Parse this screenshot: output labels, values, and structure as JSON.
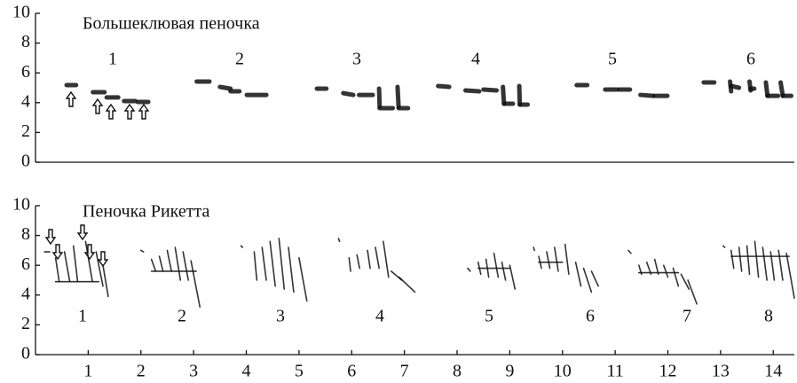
{
  "chart_data": [
    {
      "type": "spectrogram",
      "title": "Большеклювая пеночка",
      "ylim": [
        0,
        10
      ],
      "yticks": [
        0,
        2,
        4,
        6,
        8,
        10
      ],
      "xlim": [
        0,
        14.4
      ],
      "song_labels": [
        "1",
        "2",
        "3",
        "4",
        "5",
        "6"
      ],
      "note_width": 5,
      "notes": [
        [
          0.59,
          5.18,
          0.77,
          5.18
        ],
        [
          1.09,
          4.7,
          1.31,
          4.7
        ],
        [
          1.35,
          4.35,
          1.57,
          4.35
        ],
        [
          1.68,
          4.11,
          1.89,
          4.11
        ],
        [
          1.94,
          4.05,
          2.14,
          4.05
        ],
        [
          3.06,
          5.42,
          3.3,
          5.42
        ],
        [
          3.5,
          5.06,
          3.7,
          4.94
        ],
        [
          3.7,
          4.76,
          3.87,
          4.76
        ],
        [
          4.01,
          4.52,
          4.38,
          4.52
        ],
        [
          5.34,
          4.94,
          5.52,
          4.94
        ],
        [
          5.84,
          4.64,
          6.03,
          4.52
        ],
        [
          6.14,
          4.52,
          6.4,
          4.52
        ],
        [
          6.52,
          4.94,
          6.53,
          3.75
        ],
        [
          6.53,
          3.63,
          6.78,
          3.63
        ],
        [
          6.87,
          5.06,
          6.89,
          3.75
        ],
        [
          6.89,
          3.63,
          7.07,
          3.63
        ],
        [
          7.64,
          5.12,
          7.85,
          5.06
        ],
        [
          8.16,
          4.82,
          8.42,
          4.76
        ],
        [
          8.5,
          4.88,
          8.75,
          4.82
        ],
        [
          8.87,
          5.06,
          8.89,
          3.93
        ],
        [
          8.89,
          3.93,
          9.06,
          3.93
        ],
        [
          9.18,
          5.12,
          9.19,
          3.87
        ],
        [
          9.19,
          3.87,
          9.34,
          3.87
        ],
        [
          10.27,
          5.18,
          10.47,
          5.18
        ],
        [
          10.81,
          4.88,
          11.04,
          4.88
        ],
        [
          11.08,
          4.88,
          11.28,
          4.88
        ],
        [
          11.48,
          4.52,
          11.72,
          4.46
        ],
        [
          11.75,
          4.46,
          11.99,
          4.46
        ],
        [
          12.68,
          5.36,
          12.88,
          5.36
        ],
        [
          13.18,
          5.42,
          13.2,
          4.76
        ],
        [
          13.2,
          5.12,
          13.35,
          5.0
        ],
        [
          13.55,
          5.42,
          13.57,
          4.82
        ],
        [
          13.57,
          4.94,
          13.64,
          4.94
        ],
        [
          13.86,
          5.36,
          13.89,
          4.46
        ],
        [
          13.89,
          4.46,
          14.09,
          4.46
        ],
        [
          14.14,
          5.36,
          14.18,
          4.46
        ],
        [
          14.18,
          4.46,
          14.34,
          4.46
        ]
      ]
    },
    {
      "type": "spectrogram",
      "title": "Пеночка Рикетта",
      "ylim": [
        0,
        10
      ],
      "yticks": [
        0,
        2,
        4,
        6,
        8,
        10
      ],
      "xlim": [
        0,
        14.4
      ],
      "xticks": [
        1,
        2,
        3,
        4,
        5,
        6,
        7,
        8,
        9,
        10,
        11,
        12,
        13,
        14
      ],
      "song_labels": [
        "1",
        "2",
        "3",
        "4",
        "5",
        "6",
        "7",
        "8"
      ],
      "note_width": 1.6,
      "notes": [
        [
          0.17,
          6.9,
          0.27,
          6.9
        ],
        [
          0.38,
          6.5,
          0.45,
          4.9
        ],
        [
          0.55,
          6.9,
          0.65,
          4.9
        ],
        [
          0.72,
          7.3,
          0.8,
          4.9
        ],
        [
          0.95,
          7.6,
          1.08,
          4.9
        ],
        [
          1.15,
          6.9,
          1.28,
          4.6
        ],
        [
          1.28,
          6.0,
          1.38,
          3.9
        ],
        [
          0.38,
          4.9,
          1.2,
          4.9
        ],
        [
          2.0,
          7.0,
          2.05,
          6.9
        ],
        [
          2.2,
          6.4,
          2.28,
          5.6
        ],
        [
          2.35,
          6.6,
          2.42,
          5.6
        ],
        [
          2.5,
          7.0,
          2.58,
          5.6
        ],
        [
          2.65,
          7.2,
          2.75,
          5.0
        ],
        [
          2.8,
          6.9,
          2.9,
          5.0
        ],
        [
          2.95,
          6.3,
          3.12,
          3.2
        ],
        [
          2.2,
          5.6,
          3.05,
          5.6
        ],
        [
          3.9,
          7.3,
          3.93,
          7.2
        ],
        [
          4.15,
          6.9,
          4.2,
          5.0
        ],
        [
          4.3,
          7.2,
          4.38,
          5.0
        ],
        [
          4.45,
          7.6,
          4.55,
          4.6
        ],
        [
          4.62,
          7.8,
          4.72,
          4.4
        ],
        [
          4.8,
          7.2,
          4.9,
          4.2
        ],
        [
          5.0,
          6.5,
          5.15,
          3.6
        ],
        [
          5.75,
          7.8,
          5.77,
          7.6
        ],
        [
          5.95,
          6.5,
          5.98,
          5.6
        ],
        [
          6.1,
          6.7,
          6.15,
          5.8
        ],
        [
          6.3,
          7.0,
          6.35,
          5.8
        ],
        [
          6.45,
          7.2,
          6.52,
          5.8
        ],
        [
          6.6,
          7.6,
          6.7,
          5.2
        ],
        [
          6.75,
          5.6,
          6.95,
          5.0
        ],
        [
          6.9,
          5.2,
          7.2,
          4.2
        ],
        [
          8.2,
          5.8,
          8.25,
          5.6
        ],
        [
          8.4,
          6.2,
          8.45,
          5.4
        ],
        [
          8.55,
          6.4,
          8.6,
          5.2
        ],
        [
          8.7,
          6.8,
          8.78,
          5.2
        ],
        [
          8.85,
          6.2,
          8.92,
          5.0
        ],
        [
          9.0,
          6.0,
          9.1,
          4.4
        ],
        [
          8.4,
          5.8,
          9.0,
          5.8
        ],
        [
          9.45,
          7.2,
          9.47,
          7.0
        ],
        [
          9.55,
          6.6,
          9.6,
          5.8
        ],
        [
          9.7,
          6.9,
          9.76,
          5.8
        ],
        [
          9.85,
          7.2,
          9.92,
          5.6
        ],
        [
          10.05,
          7.4,
          10.12,
          5.4
        ],
        [
          10.25,
          6.2,
          10.35,
          4.6
        ],
        [
          10.4,
          5.8,
          10.55,
          4.2
        ],
        [
          10.55,
          5.6,
          10.68,
          4.6
        ],
        [
          9.55,
          6.2,
          10.0,
          6.2
        ],
        [
          11.25,
          7.0,
          11.3,
          6.8
        ],
        [
          11.45,
          6.0,
          11.5,
          5.4
        ],
        [
          11.6,
          6.2,
          11.68,
          5.4
        ],
        [
          11.75,
          6.4,
          11.82,
          5.4
        ],
        [
          11.92,
          6.0,
          12.0,
          5.2
        ],
        [
          12.1,
          5.8,
          12.2,
          4.6
        ],
        [
          12.25,
          5.4,
          12.4,
          4.4
        ],
        [
          12.38,
          5.0,
          12.55,
          3.4
        ],
        [
          11.45,
          5.5,
          12.2,
          5.5
        ],
        [
          13.05,
          7.3,
          13.08,
          7.2
        ],
        [
          13.2,
          7.0,
          13.25,
          5.8
        ],
        [
          13.35,
          7.2,
          13.4,
          5.6
        ],
        [
          13.5,
          7.3,
          13.55,
          5.4
        ],
        [
          13.65,
          7.6,
          13.72,
          5.2
        ],
        [
          13.8,
          7.2,
          13.88,
          5.0
        ],
        [
          13.95,
          6.9,
          14.02,
          5.0
        ],
        [
          14.1,
          7.0,
          14.18,
          5.0
        ],
        [
          14.25,
          6.8,
          14.4,
          3.8
        ],
        [
          13.2,
          6.6,
          14.3,
          6.6
        ]
      ]
    }
  ]
}
